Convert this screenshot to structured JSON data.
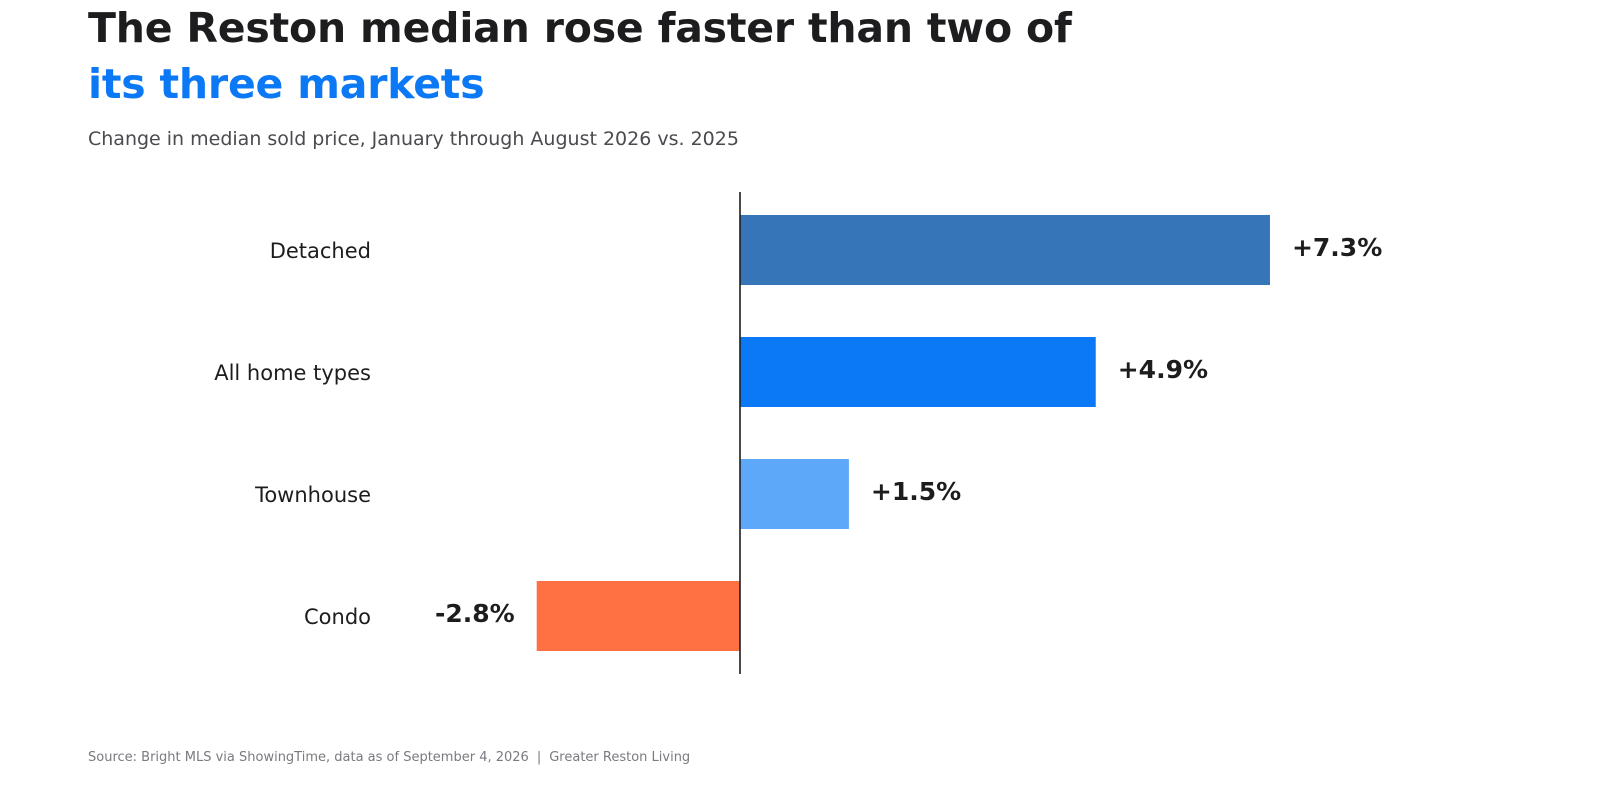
{
  "header": {
    "title_line1": "The Reston median rose faster than two of",
    "title_line2": "its three markets",
    "subtitle": "Change in median sold price, January through August 2026 vs. 2025"
  },
  "footer": {
    "source": "Source: Bright MLS via ShowingTime, data as of September 4, 2026",
    "separator": "|",
    "publisher": "Greater Reston Living"
  },
  "chart_data": {
    "type": "bar",
    "orientation": "horizontal",
    "title": "The Reston median rose faster than two of its three markets",
    "subtitle": "Change in median sold price, January through August 2026 vs. 2025",
    "xlabel": "",
    "ylabel": "",
    "grid": false,
    "legend": "none",
    "xlim": [
      -3.0,
      7.6
    ],
    "categories": [
      "Detached",
      "All home types",
      "Townhouse",
      "Condo"
    ],
    "values": [
      7.3,
      4.9,
      1.5,
      -2.8
    ],
    "labels": [
      "+7.3%",
      "+4.9%",
      "+1.5%",
      "-2.8%"
    ],
    "colors": [
      "#3575b8",
      "#0b78f5",
      "#5ea8f9",
      "#ff7043"
    ],
    "zero_line_color": "#1d1d1f"
  }
}
